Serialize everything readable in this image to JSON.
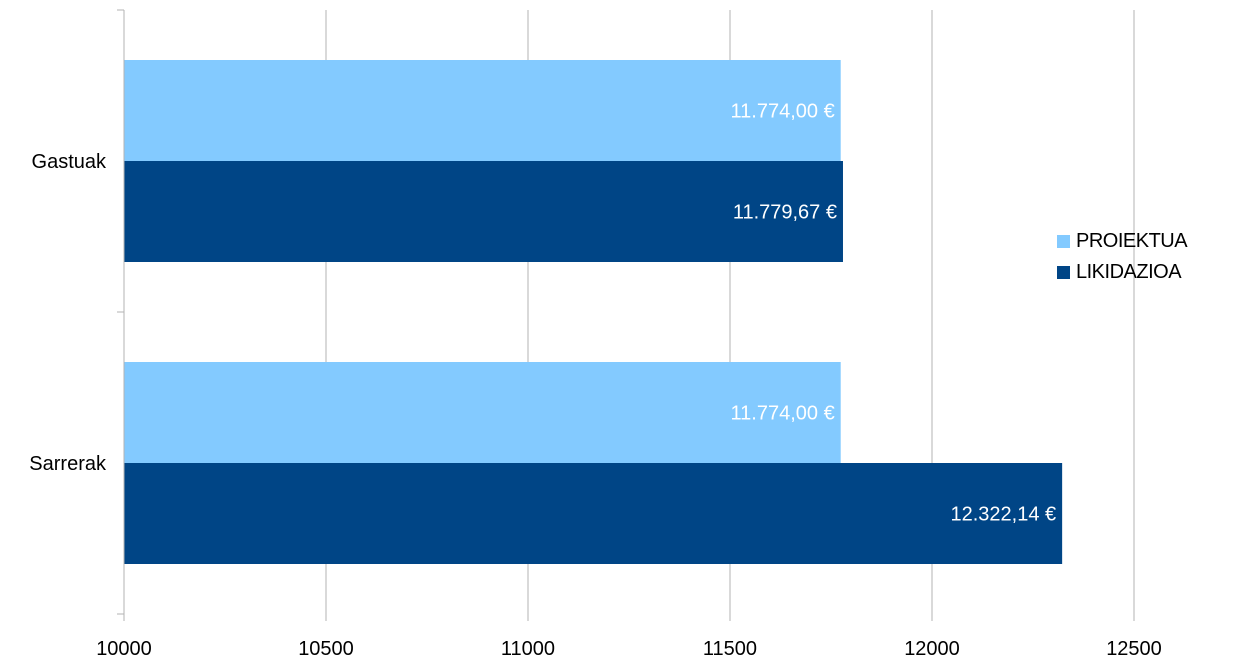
{
  "chart_data": {
    "type": "bar",
    "orientation": "horizontal",
    "categories": [
      "Gastuak",
      "Sarrerak"
    ],
    "series": [
      {
        "name": "PROIEKTUA",
        "color": "#83caff",
        "values": [
          11774.0,
          11774.0
        ],
        "labels": [
          "11.774,00 €",
          "11.774,00 €"
        ]
      },
      {
        "name": "LIKIDAZIOA",
        "color": "#004586",
        "values": [
          11779.67,
          12322.14
        ],
        "labels": [
          "11.779,67 €",
          "12.322,14 €"
        ]
      }
    ],
    "x_ticks": [
      "10000",
      "10500",
      "11000",
      "11500",
      "12000",
      "12500"
    ],
    "xlim": [
      10000,
      12500
    ],
    "grid": "vertical",
    "legend_position": "right"
  }
}
